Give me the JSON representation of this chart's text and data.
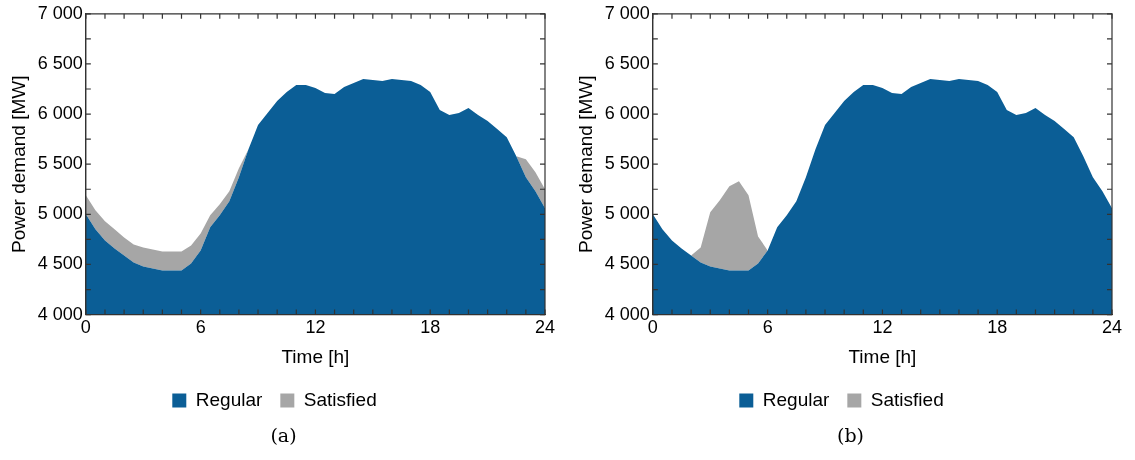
{
  "chart_data": [
    {
      "type": "area",
      "xlabel": "Time [h]",
      "ylabel": "Power demand [MW]",
      "legend": "bottom",
      "grid": false,
      "annotations": [
        "(a)"
      ],
      "x": [
        0,
        0.5,
        1,
        1.5,
        2,
        2.5,
        3,
        3.5,
        4,
        4.5,
        5,
        5.5,
        6,
        6.5,
        7,
        7.5,
        8,
        8.5,
        9,
        9.5,
        10,
        10.5,
        11,
        11.5,
        12,
        12.5,
        13,
        13.5,
        14,
        14.5,
        15,
        15.5,
        16,
        16.5,
        17,
        17.5,
        18,
        18.5,
        19,
        19.5,
        20,
        20.5,
        21,
        21.5,
        22,
        22.5,
        23,
        23.5,
        24
      ],
      "xlim": [
        0,
        24
      ],
      "xticks": [
        0,
        {
          "value": 1,
          "label": null
        },
        {
          "value": 2,
          "label": null
        },
        {
          "value": 3,
          "label": null
        },
        {
          "value": 4,
          "label": null
        },
        {
          "value": 5,
          "label": null
        },
        6,
        {
          "value": 7,
          "label": null
        },
        {
          "value": 8,
          "label": null
        },
        {
          "value": 9,
          "label": null
        },
        {
          "value": 10,
          "label": null
        },
        {
          "value": 11,
          "label": null
        },
        12,
        {
          "value": 13,
          "label": null
        },
        {
          "value": 14,
          "label": null
        },
        {
          "value": 15,
          "label": null
        },
        {
          "value": 16,
          "label": null
        },
        {
          "value": 17,
          "label": null
        },
        18,
        {
          "value": 19,
          "label": null
        },
        {
          "value": 20,
          "label": null
        },
        {
          "value": 21,
          "label": null
        },
        {
          "value": 22,
          "label": null
        },
        {
          "value": 23,
          "label": null
        },
        24
      ],
      "ylim": [
        4000,
        7000
      ],
      "yticks": [
        {
          "value": 4000,
          "label": "4 000"
        },
        {
          "value": 4250,
          "label": null
        },
        {
          "value": 4500,
          "label": "4 500"
        },
        {
          "value": 4750,
          "label": null
        },
        {
          "value": 5000,
          "label": "5 000"
        },
        {
          "value": 5250,
          "label": null
        },
        {
          "value": 5500,
          "label": "5 500"
        },
        {
          "value": 5750,
          "label": null
        },
        {
          "value": 6000,
          "label": "6 000"
        },
        {
          "value": 6250,
          "label": null
        },
        {
          "value": 6500,
          "label": "6 500"
        },
        {
          "value": 6750,
          "label": null
        },
        {
          "value": 7000,
          "label": "7 000"
        }
      ],
      "series": [
        {
          "name": "Regular",
          "color": "#0b5e96",
          "values": [
            5000,
            4850,
            4740,
            4660,
            4590,
            4520,
            4480,
            4460,
            4440,
            4440,
            4440,
            4510,
            4640,
            4870,
            4990,
            5130,
            5370,
            5650,
            5890,
            6010,
            6130,
            6220,
            6290,
            6290,
            6260,
            6210,
            6200,
            6270,
            6310,
            6350,
            6340,
            6330,
            6350,
            6340,
            6330,
            6290,
            6220,
            6040,
            5990,
            6010,
            6060,
            5990,
            5930,
            5850,
            5770,
            5580,
            5370,
            5230,
            5060
          ]
        },
        {
          "name": "Satisfied",
          "color": "#a6a6a6",
          "values": [
            5190,
            5040,
            4930,
            4850,
            4770,
            4700,
            4670,
            4650,
            4630,
            4630,
            4630,
            4690,
            4810,
            4990,
            5100,
            5230,
            5460,
            5650,
            null,
            null,
            null,
            null,
            null,
            null,
            null,
            null,
            null,
            null,
            null,
            null,
            null,
            null,
            null,
            null,
            null,
            null,
            null,
            null,
            null,
            null,
            null,
            null,
            null,
            null,
            null,
            5580,
            5550,
            5420,
            5250
          ]
        }
      ]
    },
    {
      "type": "area",
      "xlabel": "Time [h]",
      "ylabel": "Power demand [MW]",
      "legend": "bottom",
      "grid": false,
      "annotations": [
        "(b)"
      ],
      "x": [
        0,
        0.5,
        1,
        1.5,
        2,
        2.5,
        3,
        3.5,
        4,
        4.5,
        5,
        5.5,
        6,
        6.5,
        7,
        7.5,
        8,
        8.5,
        9,
        9.5,
        10,
        10.5,
        11,
        11.5,
        12,
        12.5,
        13,
        13.5,
        14,
        14.5,
        15,
        15.5,
        16,
        16.5,
        17,
        17.5,
        18,
        18.5,
        19,
        19.5,
        20,
        20.5,
        21,
        21.5,
        22,
        22.5,
        23,
        23.5,
        24
      ],
      "xlim": [
        0,
        24
      ],
      "xticks": [
        0,
        {
          "value": 1,
          "label": null
        },
        {
          "value": 2,
          "label": null
        },
        {
          "value": 3,
          "label": null
        },
        {
          "value": 4,
          "label": null
        },
        {
          "value": 5,
          "label": null
        },
        6,
        {
          "value": 7,
          "label": null
        },
        {
          "value": 8,
          "label": null
        },
        {
          "value": 9,
          "label": null
        },
        {
          "value": 10,
          "label": null
        },
        {
          "value": 11,
          "label": null
        },
        12,
        {
          "value": 13,
          "label": null
        },
        {
          "value": 14,
          "label": null
        },
        {
          "value": 15,
          "label": null
        },
        {
          "value": 16,
          "label": null
        },
        {
          "value": 17,
          "label": null
        },
        18,
        {
          "value": 19,
          "label": null
        },
        {
          "value": 20,
          "label": null
        },
        {
          "value": 21,
          "label": null
        },
        {
          "value": 22,
          "label": null
        },
        {
          "value": 23,
          "label": null
        },
        24
      ],
      "ylim": [
        4000,
        7000
      ],
      "yticks": [
        {
          "value": 4000,
          "label": "4 000"
        },
        {
          "value": 4250,
          "label": null
        },
        {
          "value": 4500,
          "label": "4 500"
        },
        {
          "value": 4750,
          "label": null
        },
        {
          "value": 5000,
          "label": "5 000"
        },
        {
          "value": 5250,
          "label": null
        },
        {
          "value": 5500,
          "label": "5 500"
        },
        {
          "value": 5750,
          "label": null
        },
        {
          "value": 6000,
          "label": "6 000"
        },
        {
          "value": 6250,
          "label": null
        },
        {
          "value": 6500,
          "label": "6 500"
        },
        {
          "value": 6750,
          "label": null
        },
        {
          "value": 7000,
          "label": "7 000"
        }
      ],
      "series": [
        {
          "name": "Regular",
          "color": "#0b5e96",
          "values": [
            5000,
            4850,
            4740,
            4660,
            4590,
            4520,
            4480,
            4460,
            4440,
            4440,
            4440,
            4510,
            4640,
            4870,
            4990,
            5130,
            5370,
            5650,
            5890,
            6010,
            6130,
            6220,
            6290,
            6290,
            6260,
            6210,
            6200,
            6270,
            6310,
            6350,
            6340,
            6330,
            6350,
            6340,
            6330,
            6290,
            6220,
            6040,
            5990,
            6010,
            6060,
            5990,
            5930,
            5850,
            5770,
            5580,
            5370,
            5230,
            5060
          ]
        },
        {
          "name": "Satisfied",
          "color": "#a6a6a6",
          "values": [
            null,
            null,
            null,
            null,
            4590,
            4670,
            5020,
            5140,
            5280,
            5330,
            5190,
            4780,
            4640,
            null,
            null,
            null,
            null,
            null,
            null,
            null,
            null,
            null,
            null,
            null,
            null,
            null,
            null,
            null,
            null,
            null,
            null,
            null,
            null,
            null,
            null,
            null,
            null,
            null,
            null,
            null,
            null,
            null,
            null,
            null,
            null,
            null,
            null,
            null,
            null
          ]
        }
      ]
    }
  ]
}
